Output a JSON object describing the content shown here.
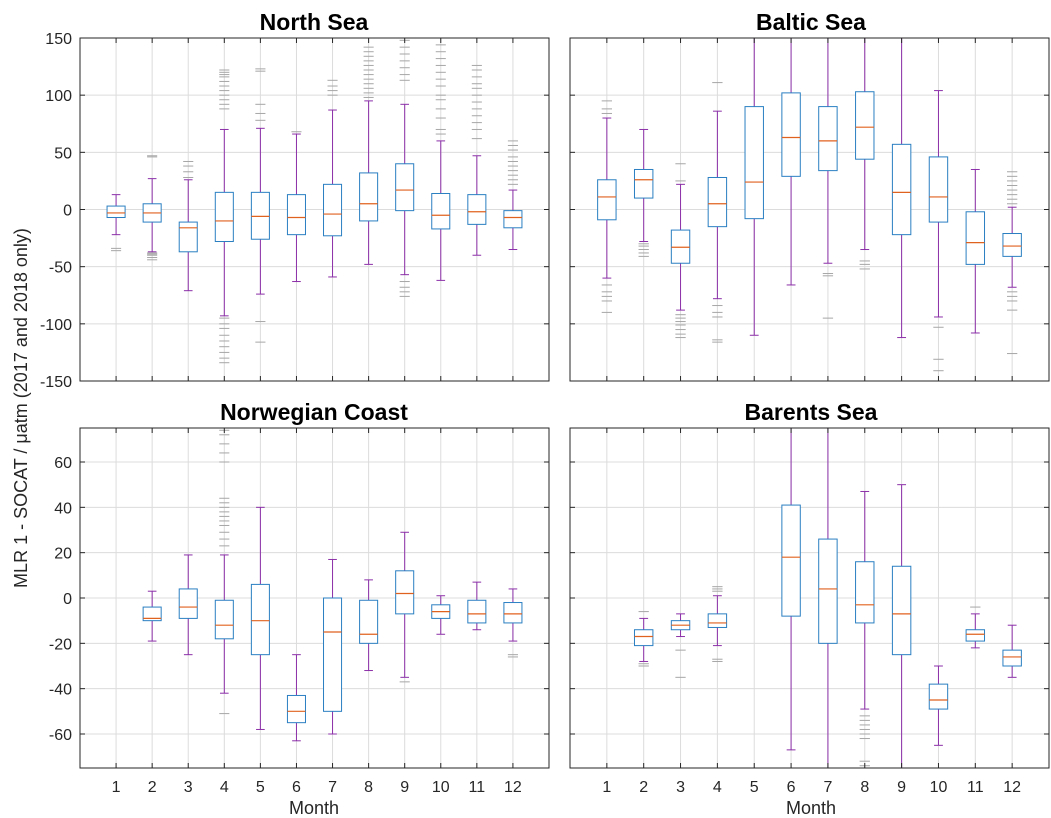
{
  "figure": {
    "ylabel": "MLR 1 - SOCAT / μatm (2017 and 2018 only)",
    "xlabel": "Month"
  },
  "colors": {
    "box": "#2a7fc2",
    "median": "#e0621f",
    "whisker": "#8b2fa8",
    "outlier": "#a6a6a6",
    "grid": "#dcdcdc",
    "axis": "#262626"
  },
  "chart_data": [
    {
      "type": "box",
      "title": "North Sea",
      "xlabel": "",
      "ylabel": "",
      "ylim": [
        -150,
        150
      ],
      "yticks": [
        -150,
        -100,
        -50,
        0,
        50,
        100,
        150
      ],
      "categories": [
        "1",
        "2",
        "3",
        "4",
        "5",
        "6",
        "7",
        "8",
        "9",
        "10",
        "11",
        "12"
      ],
      "boxes": [
        {
          "month": "1",
          "q1": -7,
          "median": -3,
          "q3": 3,
          "wlo": -22,
          "whi": 13,
          "outliers": [
            -34,
            -36
          ]
        },
        {
          "month": "2",
          "q1": -11,
          "median": -3,
          "q3": 5,
          "wlo": -37,
          "whi": 27,
          "outliers": [
            46,
            47,
            -38,
            -39,
            -40,
            -42,
            -44
          ]
        },
        {
          "month": "3",
          "q1": -37,
          "median": -16,
          "q3": -11,
          "wlo": -71,
          "whi": 26,
          "outliers": [
            28,
            33,
            38,
            42
          ]
        },
        {
          "month": "4",
          "q1": -28,
          "median": -10,
          "q3": 15,
          "wlo": -93,
          "whi": 70,
          "outliers": [
            88,
            92,
            96,
            100,
            104,
            108,
            112,
            116,
            118,
            120,
            122,
            -95,
            -100,
            -104,
            -110,
            -115,
            -120,
            -125,
            -130,
            -134
          ]
        },
        {
          "month": "5",
          "q1": -26,
          "median": -6,
          "q3": 15,
          "wlo": -74,
          "whi": 71,
          "outliers": [
            78,
            84,
            92,
            121,
            123,
            -98,
            -116
          ]
        },
        {
          "month": "6",
          "q1": -22,
          "median": -7,
          "q3": 13,
          "wlo": -63,
          "whi": 66,
          "outliers": [
            68
          ]
        },
        {
          "month": "7",
          "q1": -23,
          "median": -4,
          "q3": 22,
          "wlo": -59,
          "whi": 87,
          "outliers": [
            100,
            104,
            108,
            113
          ]
        },
        {
          "month": "8",
          "q1": -10,
          "median": 5,
          "q3": 32,
          "wlo": -48,
          "whi": 95,
          "outliers": [
            98,
            102,
            106,
            110,
            114,
            118,
            122,
            126,
            130,
            134,
            138,
            142
          ]
        },
        {
          "month": "9",
          "q1": -1,
          "median": 17,
          "q3": 40,
          "wlo": -57,
          "whi": 92,
          "outliers": [
            113,
            118,
            124,
            130,
            136,
            142,
            148,
            -63,
            -68,
            -72,
            -76
          ]
        },
        {
          "month": "10",
          "q1": -17,
          "median": -5,
          "q3": 14,
          "wlo": -62,
          "whi": 60,
          "outliers": [
            66,
            70,
            80,
            88,
            96,
            100,
            108,
            114,
            120,
            126,
            132,
            138,
            144
          ]
        },
        {
          "month": "11",
          "q1": -13,
          "median": -2,
          "q3": 13,
          "wlo": -40,
          "whi": 47,
          "outliers": [
            62,
            70,
            76,
            82,
            88,
            94,
            100,
            106,
            110,
            116,
            122,
            126
          ]
        },
        {
          "month": "12",
          "q1": -16,
          "median": -7,
          "q3": -1,
          "wlo": -35,
          "whi": 17,
          "outliers": [
            22,
            26,
            30,
            34,
            38,
            42,
            46,
            52,
            56,
            60
          ]
        }
      ]
    },
    {
      "type": "box",
      "title": "Baltic Sea",
      "xlabel": "",
      "ylabel": "",
      "ylim": [
        -150,
        150
      ],
      "yticks": [
        -150,
        -100,
        -50,
        0,
        50,
        100,
        150
      ],
      "categories": [
        "1",
        "2",
        "3",
        "4",
        "5",
        "6",
        "7",
        "8",
        "9",
        "10",
        "11",
        "12"
      ],
      "boxes": [
        {
          "month": "1",
          "q1": -9,
          "median": 11,
          "q3": 26,
          "wlo": -60,
          "whi": 80,
          "outliers": [
            84,
            88,
            95,
            -66,
            -72,
            -76,
            -80,
            -90
          ]
        },
        {
          "month": "2",
          "q1": 10,
          "median": 26,
          "q3": 35,
          "wlo": -28,
          "whi": 70,
          "outliers": [
            -30,
            -32,
            -35,
            -38,
            -41
          ]
        },
        {
          "month": "3",
          "q1": -47,
          "median": -33,
          "q3": -18,
          "wlo": -88,
          "whi": 22,
          "outliers": [
            25,
            40,
            -92,
            -95,
            -98,
            -101,
            -105,
            -109,
            -112
          ]
        },
        {
          "month": "4",
          "q1": -15,
          "median": 5,
          "q3": 28,
          "wlo": -78,
          "whi": 86,
          "outliers": [
            111,
            -84,
            -90,
            -94,
            -114,
            -116
          ]
        },
        {
          "month": "5",
          "q1": -8,
          "median": 24,
          "q3": 90,
          "wlo": -110,
          "whi": 150,
          "outliers": []
        },
        {
          "month": "6",
          "q1": 29,
          "median": 63,
          "q3": 102,
          "wlo": -66,
          "whi": 150,
          "outliers": []
        },
        {
          "month": "7",
          "q1": 34,
          "median": 60,
          "q3": 90,
          "wlo": -47,
          "whi": 150,
          "outliers": [
            -56,
            -58,
            -95
          ]
        },
        {
          "month": "8",
          "q1": 44,
          "median": 72,
          "q3": 103,
          "wlo": -35,
          "whi": 150,
          "outliers": [
            -45,
            -48,
            -52
          ]
        },
        {
          "month": "9",
          "q1": -22,
          "median": 15,
          "q3": 57,
          "wlo": -112,
          "whi": 150,
          "outliers": []
        },
        {
          "month": "10",
          "q1": -11,
          "median": 11,
          "q3": 46,
          "wlo": -94,
          "whi": 104,
          "outliers": [
            -103,
            -131,
            -141
          ]
        },
        {
          "month": "11",
          "q1": -48,
          "median": -29,
          "q3": -2,
          "wlo": -108,
          "whi": 35,
          "outliers": []
        },
        {
          "month": "12",
          "q1": -41,
          "median": -32,
          "q3": -21,
          "wlo": -68,
          "whi": 2,
          "outliers": [
            5,
            9,
            13,
            17,
            21,
            25,
            29,
            33,
            -72,
            -76,
            -80,
            -88,
            -126
          ]
        }
      ]
    },
    {
      "type": "box",
      "title": "Norwegian Coast",
      "xlabel": "Month",
      "ylabel": "",
      "ylim": [
        -75,
        75
      ],
      "yticks": [
        -60,
        -40,
        -20,
        0,
        20,
        40,
        60
      ],
      "categories": [
        "1",
        "2",
        "3",
        "4",
        "5",
        "6",
        "7",
        "8",
        "9",
        "10",
        "11",
        "12"
      ],
      "boxes": [
        {
          "month": "2",
          "q1": -10,
          "median": -9,
          "q3": -4,
          "wlo": -19,
          "whi": 3,
          "outliers": []
        },
        {
          "month": "3",
          "q1": -9,
          "median": -4,
          "q3": 4,
          "wlo": -25,
          "whi": 19,
          "outliers": []
        },
        {
          "month": "4",
          "q1": -18,
          "median": -12,
          "q3": -1,
          "wlo": -42,
          "whi": 19,
          "outliers": [
            23,
            26,
            29,
            32,
            34,
            36,
            38,
            40,
            42,
            44,
            60,
            64,
            68,
            72,
            74,
            -51
          ]
        },
        {
          "month": "5",
          "q1": -25,
          "median": -10,
          "q3": 6,
          "wlo": -58,
          "whi": 40,
          "outliers": []
        },
        {
          "month": "6",
          "q1": -55,
          "median": -50,
          "q3": -43,
          "wlo": -63,
          "whi": -25,
          "outliers": []
        },
        {
          "month": "7",
          "q1": -50,
          "median": -15,
          "q3": 0,
          "wlo": -60,
          "whi": 17,
          "outliers": []
        },
        {
          "month": "8",
          "q1": -20,
          "median": -16,
          "q3": -1,
          "wlo": -32,
          "whi": 8,
          "outliers": []
        },
        {
          "month": "9",
          "q1": -7,
          "median": 2,
          "q3": 12,
          "wlo": -35,
          "whi": 29,
          "outliers": [
            -37
          ]
        },
        {
          "month": "10",
          "q1": -9,
          "median": -6,
          "q3": -3,
          "wlo": -16,
          "whi": 1,
          "outliers": []
        },
        {
          "month": "11",
          "q1": -11,
          "median": -7,
          "q3": -1,
          "wlo": -14,
          "whi": 7,
          "outliers": []
        },
        {
          "month": "12",
          "q1": -11,
          "median": -7,
          "q3": -2,
          "wlo": -19,
          "whi": 4,
          "outliers": [
            -25,
            -26
          ]
        }
      ]
    },
    {
      "type": "box",
      "title": "Barents Sea",
      "xlabel": "Month",
      "ylabel": "",
      "ylim": [
        -75,
        75
      ],
      "yticks": [
        -60,
        -40,
        -20,
        0,
        20,
        40,
        60
      ],
      "categories": [
        "1",
        "2",
        "3",
        "4",
        "5",
        "6",
        "7",
        "8",
        "9",
        "10",
        "11",
        "12"
      ],
      "boxes": [
        {
          "month": "2",
          "q1": -21,
          "median": -17,
          "q3": -14,
          "wlo": -28,
          "whi": -9,
          "outliers": [
            -6,
            -29,
            -30
          ]
        },
        {
          "month": "3",
          "q1": -14,
          "median": -12,
          "q3": -10,
          "wlo": -17,
          "whi": -7,
          "outliers": [
            -23,
            -35
          ]
        },
        {
          "month": "4",
          "q1": -13,
          "median": -11,
          "q3": -7,
          "wlo": -21,
          "whi": 1,
          "outliers": [
            3,
            4,
            5,
            -27,
            -28
          ]
        },
        {
          "month": "6",
          "q1": -8,
          "median": 18,
          "q3": 41,
          "wlo": -67,
          "whi": 75,
          "outliers": []
        },
        {
          "month": "7",
          "q1": -20,
          "median": 4,
          "q3": 26,
          "wlo": -75,
          "whi": 75,
          "outliers": []
        },
        {
          "month": "8",
          "q1": -11,
          "median": -3,
          "q3": 16,
          "wlo": -49,
          "whi": 47,
          "outliers": [
            -52,
            -54,
            -56,
            -58,
            -60,
            -62,
            -72,
            -74
          ]
        },
        {
          "month": "9",
          "q1": -25,
          "median": -7,
          "q3": 14,
          "wlo": -75,
          "whi": 50,
          "outliers": []
        },
        {
          "month": "10",
          "q1": -49,
          "median": -45,
          "q3": -38,
          "wlo": -65,
          "whi": -30,
          "outliers": []
        },
        {
          "month": "11",
          "q1": -19,
          "median": -16,
          "q3": -14,
          "wlo": -22,
          "whi": -7,
          "outliers": [
            -4
          ]
        },
        {
          "month": "12",
          "q1": -30,
          "median": -26,
          "q3": -23,
          "wlo": -35,
          "whi": -12,
          "outliers": []
        }
      ]
    }
  ]
}
